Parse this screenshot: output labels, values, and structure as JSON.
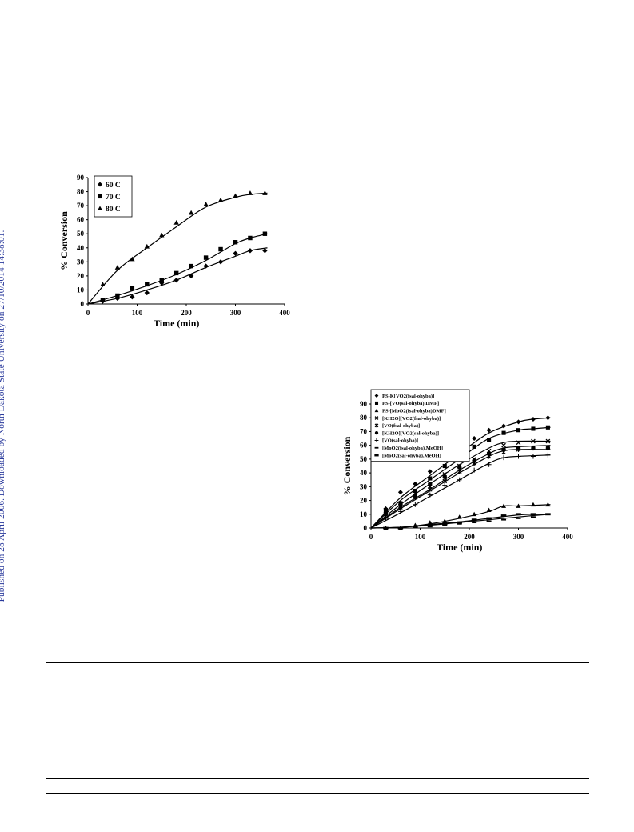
{
  "side_note": "Published on 28 April 2006. Downloaded by North Dakota State University on 27/10/2014 14:38:01.",
  "chart_data": [
    {
      "type": "scatter",
      "title": "",
      "xlabel": "Time (min)",
      "ylabel": "% Conversion",
      "xlim": [
        0,
        400
      ],
      "ylim": [
        0,
        90
      ],
      "xticks": [
        "0",
        "100",
        "200",
        "300",
        "400"
      ],
      "yticks": [
        "0",
        "10",
        "20",
        "30",
        "40",
        "50",
        "60",
        "70",
        "80",
        "90"
      ],
      "legend_position": "top-left",
      "series": [
        {
          "name": "60 C",
          "marker": "diamond",
          "x": [
            30,
            60,
            90,
            120,
            150,
            180,
            210,
            240,
            270,
            300,
            330,
            360
          ],
          "y": [
            2,
            4,
            5,
            8,
            15,
            17,
            20,
            27,
            30,
            36,
            38,
            38
          ],
          "fit": [
            [
              0,
              0
            ],
            [
              60,
              4
            ],
            [
              120,
              10
            ],
            [
              180,
              17
            ],
            [
              240,
              26
            ],
            [
              300,
              34
            ],
            [
              330,
              38
            ],
            [
              365,
              40
            ]
          ]
        },
        {
          "name": "70 C",
          "marker": "square",
          "x": [
            30,
            60,
            90,
            120,
            150,
            180,
            210,
            240,
            270,
            300,
            330,
            360
          ],
          "y": [
            3,
            6,
            11,
            14,
            17,
            22,
            27,
            33,
            39,
            44,
            47,
            50
          ],
          "fit": [
            [
              0,
              0
            ],
            [
              60,
              6
            ],
            [
              120,
              13
            ],
            [
              180,
              21
            ],
            [
              240,
              31
            ],
            [
              300,
              43
            ],
            [
              330,
              47
            ],
            [
              365,
              50
            ]
          ]
        },
        {
          "name": "80 C",
          "marker": "triangle",
          "x": [
            30,
            60,
            90,
            120,
            150,
            180,
            210,
            240,
            270,
            300,
            330,
            360
          ],
          "y": [
            14,
            26,
            32,
            41,
            49,
            58,
            65,
            71,
            74,
            77,
            79,
            79
          ],
          "fit": [
            [
              0,
              0
            ],
            [
              60,
              24
            ],
            [
              120,
              40
            ],
            [
              180,
              55
            ],
            [
              240,
              69
            ],
            [
              300,
              76
            ],
            [
              330,
              78
            ],
            [
              365,
              79
            ]
          ]
        }
      ]
    },
    {
      "type": "scatter",
      "title": "",
      "xlabel": "Time (min)",
      "ylabel": "% Conversion",
      "xlim": [
        0,
        400
      ],
      "ylim": [
        0,
        90
      ],
      "xticks": [
        "0",
        "100",
        "200",
        "300",
        "400"
      ],
      "yticks": [
        "0",
        "10",
        "20",
        "30",
        "40",
        "50",
        "60",
        "70",
        "80",
        "90"
      ],
      "legend_position": "top-left",
      "series": [
        {
          "name": "PS-K[VO2(fsal-ohyba)]",
          "marker": "diamond",
          "x": [
            30,
            60,
            90,
            120,
            150,
            180,
            210,
            240,
            270,
            300,
            330,
            360
          ],
          "y": [
            14,
            26,
            32,
            41,
            49,
            58,
            65,
            71,
            74,
            77,
            79,
            80
          ],
          "fit": [
            [
              0,
              0
            ],
            [
              60,
              22
            ],
            [
              120,
              38
            ],
            [
              180,
              54
            ],
            [
              240,
              69
            ],
            [
              300,
              77
            ],
            [
              330,
              79
            ],
            [
              365,
              80
            ]
          ]
        },
        {
          "name": "PS-[VO(sal-ohyba).DMF]",
          "marker": "square",
          "x": [
            30,
            60,
            90,
            120,
            150,
            180,
            210,
            240,
            270,
            300,
            330,
            360
          ],
          "y": [
            13,
            18,
            27,
            36,
            45,
            53,
            59,
            64,
            69,
            71,
            72,
            73
          ],
          "fit": [
            [
              0,
              0
            ],
            [
              60,
              20
            ],
            [
              120,
              35
            ],
            [
              180,
              50
            ],
            [
              240,
              65
            ],
            [
              300,
              71
            ],
            [
              330,
              72
            ],
            [
              365,
              73
            ]
          ]
        },
        {
          "name": "PS-[MoO2(fsal-ohyba)DMF]",
          "marker": "triangle",
          "x": [
            30,
            60,
            90,
            120,
            150,
            180,
            210,
            240,
            270,
            300,
            330,
            360
          ],
          "y": [
            0,
            0,
            2,
            4,
            5,
            8,
            10,
            13,
            16,
            16,
            17,
            17
          ],
          "fit": [
            [
              0,
              0
            ],
            [
              60,
              0.5
            ],
            [
              120,
              3
            ],
            [
              180,
              7
            ],
            [
              240,
              12
            ],
            [
              270,
              16
            ],
            [
              300,
              16
            ],
            [
              365,
              17
            ]
          ]
        },
        {
          "name": "[KH2O][VO2(fsal-ohyba)]",
          "marker": "x",
          "x": [
            30,
            60,
            90,
            120,
            150,
            180,
            210,
            240,
            270,
            300,
            330,
            360
          ],
          "y": [
            12,
            16,
            25,
            30,
            39,
            45,
            50,
            56,
            60,
            62,
            63,
            63
          ],
          "fit": [
            [
              0,
              0
            ],
            [
              60,
              17
            ],
            [
              120,
              32
            ],
            [
              180,
              46
            ],
            [
              240,
              58
            ],
            [
              270,
              62
            ],
            [
              300,
              63
            ],
            [
              365,
              63
            ]
          ]
        },
        {
          "name": "[VO(fsal-ohyba)]",
          "marker": "star",
          "x": [
            30,
            60,
            90,
            120,
            150,
            180,
            210,
            240,
            270,
            300,
            330,
            360
          ],
          "y": [
            10,
            15,
            22,
            28,
            34,
            41,
            47,
            52,
            55,
            57,
            58,
            58
          ],
          "fit": [
            [
              0,
              0
            ],
            [
              60,
              15
            ],
            [
              120,
              28
            ],
            [
              180,
              42
            ],
            [
              240,
              54
            ],
            [
              270,
              58
            ],
            [
              300,
              59
            ],
            [
              365,
              60
            ]
          ]
        },
        {
          "name": "[KH2O][VO2(sal-ohyba)]",
          "marker": "circle",
          "x": [
            30,
            60,
            90,
            120,
            150,
            180,
            210,
            240,
            270,
            300,
            330,
            360
          ],
          "y": [
            11,
            17,
            23,
            32,
            37,
            44,
            49,
            54,
            57,
            58,
            58,
            58
          ],
          "fit": [
            [
              0,
              0
            ],
            [
              60,
              14
            ],
            [
              120,
              27
            ],
            [
              180,
              40
            ],
            [
              240,
              52
            ],
            [
              270,
              56
            ],
            [
              300,
              57
            ],
            [
              365,
              57
            ]
          ]
        },
        {
          "name": "[VO(sal-ohyba)]",
          "marker": "plus",
          "x": [
            30,
            60,
            90,
            120,
            150,
            180,
            210,
            240,
            270,
            300,
            330,
            360
          ],
          "y": [
            7,
            12,
            17,
            24,
            31,
            35,
            42,
            46,
            51,
            52,
            52,
            53
          ],
          "fit": [
            [
              0,
              0
            ],
            [
              60,
              11
            ],
            [
              120,
              23
            ],
            [
              180,
              35
            ],
            [
              240,
              47
            ],
            [
              270,
              51
            ],
            [
              300,
              52
            ],
            [
              365,
              53
            ]
          ]
        },
        {
          "name": "[MoO2(fsal-ohyba).MeOH]",
          "marker": "dash",
          "x": [
            30,
            60,
            90,
            120,
            150,
            180,
            210,
            240,
            270,
            300,
            330,
            360
          ],
          "y": [
            0,
            0,
            1,
            1,
            2,
            3,
            4,
            5,
            6,
            7,
            8,
            10
          ],
          "fit": [
            [
              0,
              0
            ],
            [
              60,
              0.5
            ],
            [
              120,
              2
            ],
            [
              180,
              4
            ],
            [
              240,
              6
            ],
            [
              300,
              8
            ],
            [
              330,
              9
            ],
            [
              365,
              10
            ]
          ]
        },
        {
          "name": "[MoO2(sal-ohyba).MeOH]",
          "marker": "bar",
          "x": [
            30,
            60,
            90,
            120,
            150,
            180,
            210,
            240,
            270,
            300,
            330,
            360
          ],
          "y": [
            0,
            0,
            1,
            2,
            3,
            4,
            6,
            7,
            9,
            10,
            10,
            10
          ],
          "fit": [
            [
              0,
              0
            ],
            [
              60,
              0.5
            ],
            [
              120,
              2.5
            ],
            [
              180,
              4.5
            ],
            [
              240,
              7
            ],
            [
              300,
              9.5
            ],
            [
              330,
              10
            ],
            [
              365,
              10
            ]
          ]
        }
      ]
    }
  ]
}
